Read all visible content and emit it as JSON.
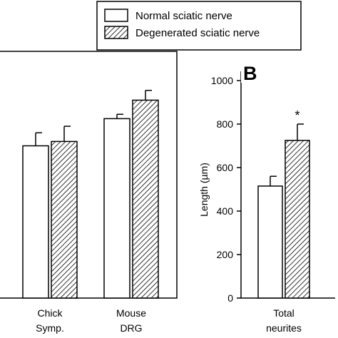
{
  "legend": {
    "items": [
      {
        "label": "Normal sciatic nerve",
        "pattern": "solid"
      },
      {
        "label": "Degenerated sciatic nerve",
        "pattern": "hatched"
      }
    ]
  },
  "chart_data": [
    {
      "type": "bar",
      "title": "",
      "categories": [
        "Chick Symp.",
        "Mouse DRG"
      ],
      "category_lines": [
        [
          "Chick",
          "Symp."
        ],
        [
          "Mouse",
          "DRG"
        ]
      ],
      "series": [
        {
          "name": "Normal sciatic nerve",
          "values": [
            700,
            825
          ],
          "errors": [
            60,
            20
          ]
        },
        {
          "name": "Degenerated sciatic nerve",
          "values": [
            720,
            910
          ],
          "errors": [
            70,
            45
          ]
        }
      ],
      "ylim": [
        0,
        1000
      ],
      "grid": false,
      "note": "left panel cropped; y-axis not visible"
    },
    {
      "type": "bar",
      "panel_label": "B",
      "categories": [
        "Total neurites"
      ],
      "category_lines": [
        [
          "Total",
          "neurites"
        ]
      ],
      "series": [
        {
          "name": "Normal sciatic nerve",
          "values": [
            515
          ],
          "errors": [
            45
          ]
        },
        {
          "name": "Degenerated sciatic nerve",
          "values": [
            725
          ],
          "errors": [
            75
          ]
        }
      ],
      "annotations": [
        "*"
      ],
      "ylabel": "Length (µm)",
      "ylim": [
        0,
        1000
      ],
      "yticks": [
        0,
        200,
        400,
        600,
        800,
        1000
      ],
      "grid": false
    }
  ],
  "colors": {
    "frame": "#000000",
    "normal_fill": "#ffffff",
    "hatch": "#000000"
  }
}
